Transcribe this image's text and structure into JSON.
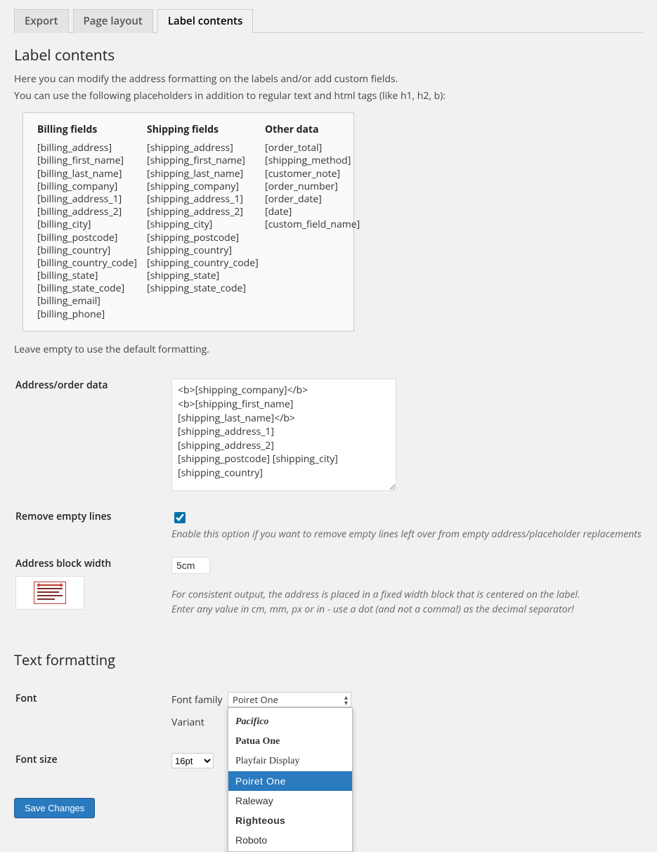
{
  "tabs": {
    "export": "Export",
    "page_layout": "Page layout",
    "label_contents": "Label contents",
    "active": "label_contents"
  },
  "page_title": "Label contents",
  "intro_line1": "Here you can modify the address formatting on the labels and/or add custom fields.",
  "intro_line2": "You can use the following placeholders in addition to regular text and html tags (like h1, h2, b):",
  "placeholders": {
    "billing": {
      "heading": "Billing fields",
      "items": [
        "[billing_address]",
        "[billing_first_name]",
        "[billing_last_name]",
        "[billing_company]",
        "[billing_address_1]",
        "[billing_address_2]",
        "[billing_city]",
        "[billing_postcode]",
        "[billing_country]",
        "[billing_country_code]",
        "[billing_state]",
        "[billing_state_code]",
        "[billing_email]",
        "[billing_phone]"
      ]
    },
    "shipping": {
      "heading": "Shipping fields",
      "items": [
        "[shipping_address]",
        "[shipping_first_name]",
        "[shipping_last_name]",
        "[shipping_company]",
        "[shipping_address_1]",
        "[shipping_address_2]",
        "[shipping_city]",
        "[shipping_postcode]",
        "[shipping_country]",
        "[shipping_country_code]",
        "[shipping_state]",
        "[shipping_state_code]"
      ]
    },
    "other": {
      "heading": "Other data",
      "items": [
        "[order_total]",
        "[shipping_method]",
        "[customer_note]",
        "[order_number]",
        "[order_date]",
        "[date]",
        "[custom_field_name]"
      ]
    }
  },
  "leave_empty_note": "Leave empty to use the default formatting.",
  "fields": {
    "address_data": {
      "label": "Address/order data",
      "value": "<b>[shipping_company]</b>\n<b>[shipping_first_name] [shipping_last_name]</b>\n[shipping_address_1]\n[shipping_address_2]\n[shipping_postcode] [shipping_city]\n[shipping_country]"
    },
    "remove_empty": {
      "label": "Remove empty lines",
      "checked": true,
      "hint": "Enable this option if you want to remove empty lines left over from empty address/placeholder replacements"
    },
    "block_width": {
      "label": "Address block width",
      "value": "5cm",
      "hint1": "For consistent output, the address is placed in a fixed width block that is centered on the label.",
      "hint2": "Enter any value in cm, mm, px or in - use a dot (and not a comma!) as the decimal separator!"
    }
  },
  "text_formatting_heading": "Text formatting",
  "font": {
    "label": "Font",
    "family_label": "Font family",
    "variant_label": "Variant",
    "selected": "Poiret One",
    "options": [
      {
        "name": "",
        "class": "cut-top"
      },
      {
        "name": "Pacifico",
        "class": "ff-pacifico"
      },
      {
        "name": "Patua One",
        "class": "ff-patua"
      },
      {
        "name": "Playfair Display",
        "class": "ff-playfair"
      },
      {
        "name": "Poiret One",
        "class": "ff-poiret",
        "selected": true
      },
      {
        "name": "Raleway",
        "class": "ff-raleway"
      },
      {
        "name": "Righteous",
        "class": "ff-righteous"
      },
      {
        "name": "Roboto",
        "class": "ff-roboto"
      },
      {
        "name": "",
        "class": "cut-bottom"
      }
    ]
  },
  "font_size": {
    "label": "Font size",
    "value": "16pt"
  },
  "save_button": "Save Changes",
  "colors": {
    "accent": "#2a7abf",
    "background": "#f1f1f1",
    "border": "#cccccc",
    "icon_red": "#c0392b"
  }
}
